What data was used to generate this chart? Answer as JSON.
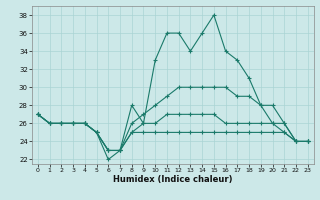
{
  "xlabel": "Humidex (Indice chaleur)",
  "background_color": "#cce8e8",
  "line_color": "#1a7a6a",
  "grid_color": "#aad4d4",
  "xlim": [
    -0.5,
    23.5
  ],
  "ylim": [
    21.5,
    39.0
  ],
  "yticks": [
    22,
    24,
    26,
    28,
    30,
    32,
    34,
    36,
    38
  ],
  "xticks": [
    0,
    1,
    2,
    3,
    4,
    5,
    6,
    7,
    8,
    9,
    10,
    11,
    12,
    13,
    14,
    15,
    16,
    17,
    18,
    19,
    20,
    21,
    22,
    23
  ],
  "lines": [
    [
      27,
      26,
      26,
      26,
      26,
      25,
      22,
      23,
      28,
      26,
      33,
      36,
      36,
      34,
      36,
      38,
      34,
      33,
      31,
      28,
      26,
      25,
      24,
      24
    ],
    [
      27,
      26,
      26,
      26,
      26,
      25,
      23,
      23,
      26,
      27,
      28,
      29,
      30,
      30,
      30,
      30,
      30,
      29,
      29,
      28,
      28,
      26,
      24,
      24
    ],
    [
      27,
      26,
      26,
      26,
      26,
      25,
      23,
      23,
      25,
      26,
      26,
      27,
      27,
      27,
      27,
      27,
      26,
      26,
      26,
      26,
      26,
      26,
      24,
      24
    ],
    [
      27,
      26,
      26,
      26,
      26,
      25,
      23,
      23,
      25,
      25,
      25,
      25,
      25,
      25,
      25,
      25,
      25,
      25,
      25,
      25,
      25,
      25,
      24,
      24
    ]
  ]
}
